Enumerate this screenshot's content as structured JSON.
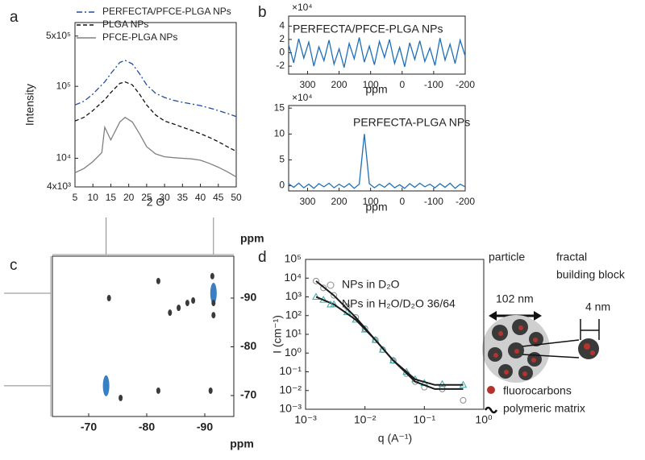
{
  "chart_data": [
    {
      "type": "line",
      "panel_label": "a",
      "xlabel": "2 Θ",
      "ylabel": "Intensity",
      "x": [
        5,
        7.5,
        10,
        12.5,
        13.3,
        15,
        17.5,
        19,
        21,
        23,
        25,
        27.5,
        30,
        32.5,
        35,
        37.5,
        40,
        42.5,
        45,
        47.5,
        50
      ],
      "series": [
        {
          "name": "PERFECTA/PFCE-PLGA NPs",
          "color": "#1f4e9c",
          "dash": "dash-dot",
          "values": [
            55000,
            62000,
            78000,
            105000,
            115000,
            150000,
            215000,
            230000,
            205000,
            150000,
            105000,
            80000,
            70000,
            64000,
            60000,
            57000,
            54000,
            50000,
            46000,
            42000,
            38000
          ]
        },
        {
          "name": "PLGA NPs",
          "color": "#111111",
          "dash": "dash",
          "values": [
            33000,
            37000,
            46000,
            60000,
            65000,
            82000,
            110000,
            115000,
            105000,
            78000,
            55000,
            40000,
            33000,
            30000,
            27000,
            24500,
            22000,
            19500,
            17000,
            14500,
            12500
          ]
        },
        {
          "name": "PFCE-PLGA NPs",
          "color": "#808080",
          "dash": "solid",
          "values": [
            6300,
            7200,
            9000,
            12000,
            27000,
            18000,
            32000,
            37000,
            32000,
            22000,
            14500,
            11500,
            10500,
            10200,
            10000,
            9800,
            9400,
            8500,
            7500,
            6500,
            5500
          ]
        }
      ],
      "xlim": [
        5,
        50
      ],
      "xticks": [
        5,
        10,
        15,
        20,
        25,
        30,
        35,
        40,
        45,
        50
      ],
      "ylim": [
        4000,
        770000
      ],
      "ylog": true,
      "yticks": [
        {
          "value": 4000,
          "label": "4x10³"
        },
        {
          "value": 10000,
          "label": "10⁴"
        },
        {
          "value": 100000,
          "label": "10⁵"
        },
        {
          "value": 500000,
          "label": "5x10⁵"
        }
      ],
      "legend": "upper left"
    },
    {
      "type": "line",
      "panel_label": "b",
      "title": "PERFECTA/PFCE-PLGA NPs",
      "xlabel": "ppm",
      "y_multiplier": "×10⁴",
      "x": [
        360,
        344,
        328,
        312,
        296,
        280,
        264,
        248,
        232,
        216,
        200,
        184,
        168,
        152,
        136,
        120,
        104,
        88,
        72,
        56,
        40,
        24,
        8,
        -8,
        -24,
        -40,
        -56,
        -72,
        -88,
        -104,
        -120,
        -136,
        -152,
        -168,
        -184,
        -200
      ],
      "series": [
        {
          "color": "#1f6fb8",
          "dash": "solid",
          "values": [
            1.2,
            -1.5,
            2.1,
            -0.8,
            1.6,
            -2.0,
            0.9,
            -1.2,
            1.9,
            -1.7,
            0.6,
            -2.2,
            1.4,
            -0.9,
            2.3,
            -1.4,
            1.0,
            -1.8,
            1.7,
            -0.7,
            2.0,
            -1.6,
            0.8,
            -2.1,
            1.5,
            -1.0,
            1.8,
            -1.3,
            0.7,
            -1.9,
            2.2,
            -1.1,
            1.3,
            -1.6,
            1.9,
            -0.5
          ]
        }
      ],
      "xlim": [
        360,
        -200
      ],
      "xticks": [
        300,
        200,
        100,
        0,
        -100,
        -200
      ],
      "ylim": [
        -3.2,
        5.5
      ],
      "yticks": [
        -2,
        0,
        2,
        4
      ]
    },
    {
      "type": "line",
      "title": "PERFECTA-PLGA NPs",
      "xlabel": "ppm",
      "y_multiplier": "×10⁴",
      "x": [
        360,
        344,
        328,
        312,
        296,
        280,
        264,
        248,
        232,
        216,
        200,
        184,
        168,
        152,
        136,
        120,
        104,
        88,
        72,
        56,
        40,
        24,
        8,
        -8,
        -24,
        -40,
        -56,
        -72,
        -88,
        -104,
        -120,
        -136,
        -152,
        -168,
        -184,
        -200
      ],
      "series": [
        {
          "color": "#1f6fb8",
          "dash": "solid",
          "values": [
            0.4,
            -0.3,
            0.5,
            -0.4,
            0.3,
            -0.5,
            0.4,
            -0.2,
            0.5,
            -0.4,
            0.3,
            -0.3,
            0.4,
            -0.5,
            0.3,
            10,
            0.4,
            -0.4,
            0.3,
            -0.3,
            0.5,
            -0.4,
            0.2,
            -0.5,
            0.4,
            -0.3,
            0.5,
            -0.2,
            0.3,
            -0.4,
            0.4,
            -0.3,
            0.5,
            -0.5,
            0.3,
            -0.2
          ]
        }
      ],
      "xlim": [
        360,
        -200
      ],
      "xticks": [
        300,
        200,
        100,
        0,
        -100,
        -200
      ],
      "ylim": [
        -1,
        15.5
      ],
      "yticks": [
        0,
        5,
        10,
        15
      ]
    },
    {
      "type": "scatter",
      "panel_label": "c",
      "xlabel": "ppm",
      "ylabel": "ppm",
      "yaxis_side": "right",
      "series": [
        {
          "color": "#3a7fc1",
          "x": [
            -73,
            -91.5
          ],
          "values": [
            -72,
            -91
          ]
        },
        {
          "color": "#3a3a3a",
          "x": [
            -91.5,
            -91,
            -73.5,
            -82,
            -84,
            -85.5,
            -87,
            -88,
            -82,
            -91.3,
            -75.5,
            -91.5
          ],
          "values": [
            -89,
            -71,
            -90,
            -93.5,
            -87,
            -88,
            -89,
            -89.5,
            -71,
            -94.5,
            -69.5,
            -86.5
          ]
        }
      ],
      "xlim": [
        -63.75,
        -95
      ],
      "xticks": [
        -70,
        -80,
        -90
      ],
      "ylim": [
        -65.7,
        -98.6
      ],
      "yticks": [
        -70,
        -80,
        -90
      ]
    },
    {
      "type": "scatter",
      "panel_label": "d",
      "xlabel": "q (A⁻¹)",
      "ylabel": "I (cm⁻¹)",
      "xlog": true,
      "ylog": true,
      "series": [
        {
          "name": "NPs in D₂O",
          "color": "#8c8c8c",
          "marker": "circle",
          "x": [
            0.0015,
            0.002,
            0.003,
            0.005,
            0.007,
            0.01,
            0.015,
            0.02,
            0.03,
            0.05,
            0.07,
            0.1,
            0.2,
            0.45
          ],
          "values": [
            7000,
            3000,
            1200,
            300,
            80,
            20,
            5,
            1.5,
            0.4,
            0.08,
            0.03,
            0.015,
            0.012,
            0.003
          ]
        },
        {
          "name": "NPs in H₂O/D₂O 36/64",
          "color": "#3aa6a6",
          "marker": "triangle",
          "x": [
            0.0015,
            0.002,
            0.003,
            0.005,
            0.007,
            0.01,
            0.015,
            0.02,
            0.03,
            0.05,
            0.07,
            0.1,
            0.2,
            0.45
          ],
          "values": [
            1000,
            700,
            400,
            150,
            60,
            18,
            5,
            1.5,
            0.4,
            0.1,
            0.04,
            0.025,
            0.022,
            0.02
          ]
        },
        {
          "color": "#1a1a1a",
          "marker": "none",
          "x": [
            0.0015,
            0.003,
            0.007,
            0.015,
            0.03,
            0.07,
            0.15,
            0.45
          ],
          "values": [
            7000,
            1200,
            80,
            5,
            0.4,
            0.03,
            0.012,
            0.012
          ]
        },
        {
          "color": "#1a1a1a",
          "marker": "none",
          "x": [
            0.0015,
            0.003,
            0.007,
            0.015,
            0.03,
            0.07,
            0.15,
            0.45
          ],
          "values": [
            1000,
            400,
            60,
            5,
            0.4,
            0.04,
            0.02,
            0.02
          ]
        }
      ],
      "xlim": [
        0.001,
        1
      ],
      "xticks": [
        {
          "value": 0.001,
          "label": "10⁻³"
        },
        {
          "value": 0.01,
          "label": "10⁻²"
        },
        {
          "value": 0.1,
          "label": "10⁻¹"
        },
        {
          "value": 1,
          "label": "10⁰"
        }
      ],
      "ylim": [
        0.001,
        100000
      ],
      "yticks": [
        {
          "value": 0.001,
          "label": "10⁻³"
        },
        {
          "value": 0.01,
          "label": "10⁻²"
        },
        {
          "value": 0.1,
          "label": "10⁻¹"
        },
        {
          "value": 1,
          "label": "10⁰"
        },
        {
          "value": 10,
          "label": "10¹"
        },
        {
          "value": 100,
          "label": "10²"
        },
        {
          "value": 1000,
          "label": "10³"
        },
        {
          "value": 10000,
          "label": "10⁴"
        },
        {
          "value": 100000,
          "label": "10⁵"
        }
      ],
      "legend": "upper left",
      "annotations": [
        "particle",
        "fractal",
        "building block",
        "102 nm",
        "4 nm",
        "fluorocarbons",
        "polymeric matrix"
      ]
    }
  ]
}
